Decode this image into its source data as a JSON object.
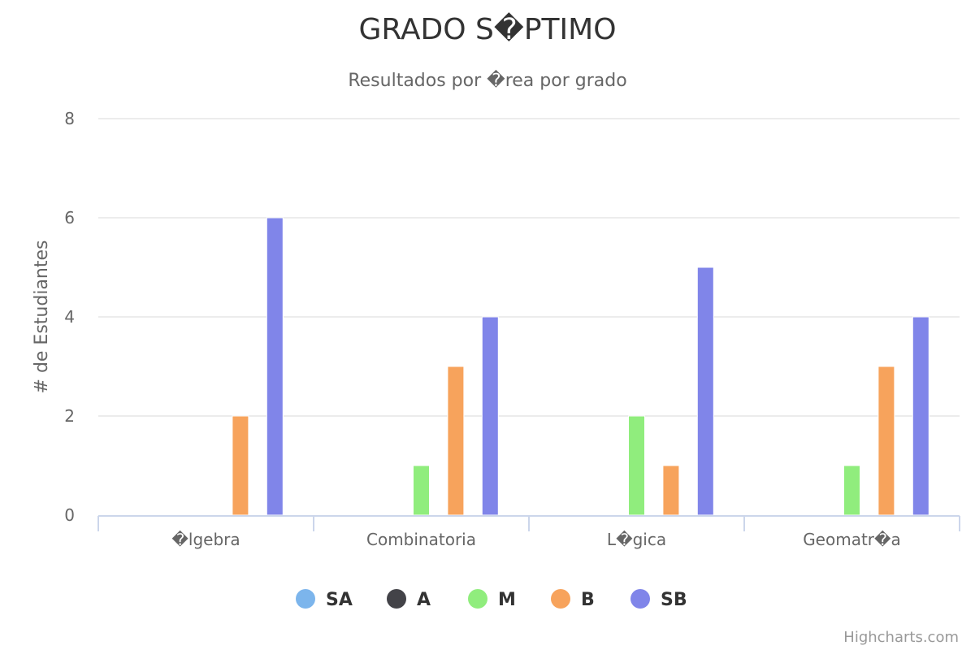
{
  "chart_data": {
    "type": "bar",
    "title": "GRADO S�PTIMO",
    "subtitle": "Resultados por �rea por grado",
    "xlabel": "",
    "ylabel": "# de Estudiantes",
    "categories": [
      "�lgebra",
      "Combinatoria",
      "L�gica",
      "Geomatr�a"
    ],
    "ylim": [
      0,
      8
    ],
    "yticks": [
      0,
      2,
      4,
      6,
      8
    ],
    "grid": true,
    "legend_position": "bottom-center",
    "series": [
      {
        "name": "SA",
        "color": "#7cb5ec",
        "values": [
          0,
          0,
          0,
          0
        ]
      },
      {
        "name": "A",
        "color": "#434348",
        "values": [
          0,
          0,
          0,
          0
        ]
      },
      {
        "name": "M",
        "color": "#90ed7d",
        "values": [
          0,
          1,
          2,
          1
        ]
      },
      {
        "name": "B",
        "color": "#f7a35c",
        "values": [
          2,
          3,
          1,
          3
        ]
      },
      {
        "name": "SB",
        "color": "#8085e9",
        "values": [
          6,
          4,
          5,
          4
        ]
      }
    ]
  },
  "credits": {
    "label": "Highcharts.com"
  },
  "colors": {
    "gridline": "#e6e6e6",
    "axis_line": "#ccd6eb",
    "title": "#333333",
    "text": "#666666"
  }
}
